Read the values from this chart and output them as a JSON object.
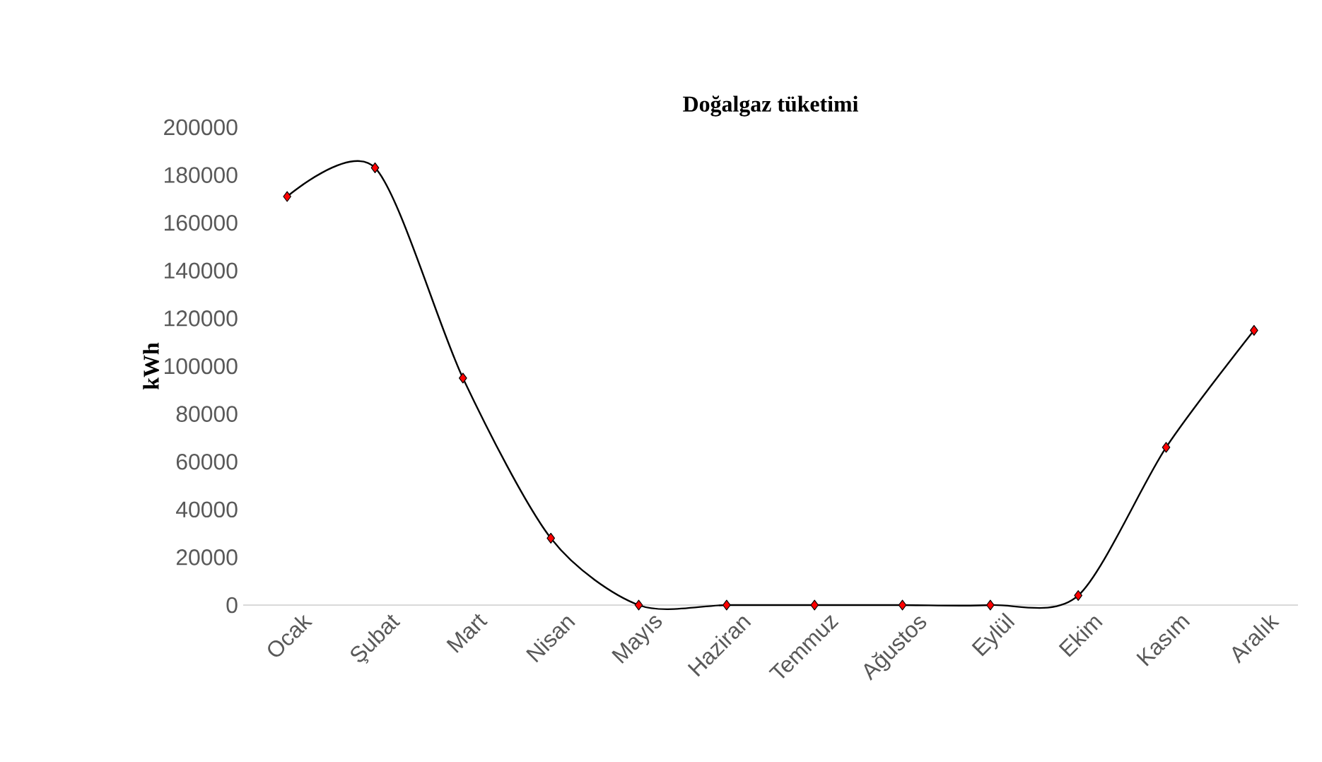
{
  "chart_data": {
    "type": "line",
    "title": "Doğalgaz tüketimi",
    "ylabel": "kWh",
    "categories": [
      "Ocak",
      "Şubat",
      "Mart",
      "Nisan",
      "Mayıs",
      "Haziran",
      "Temmuz",
      "Ağustos",
      "Eylül",
      "Ekim",
      "Kasım",
      "Aralık"
    ],
    "series": [
      {
        "color": "#000000",
        "values": [
          171000,
          183000,
          95000,
          28000,
          0,
          0,
          0,
          0,
          0,
          4000,
          66000,
          115000
        ]
      }
    ],
    "ylim": [
      0,
      200000
    ],
    "yticks": [
      0,
      20000,
      40000,
      60000,
      80000,
      100000,
      120000,
      140000,
      160000,
      180000,
      200000
    ],
    "marker": "diamond",
    "line_style": "solid"
  }
}
